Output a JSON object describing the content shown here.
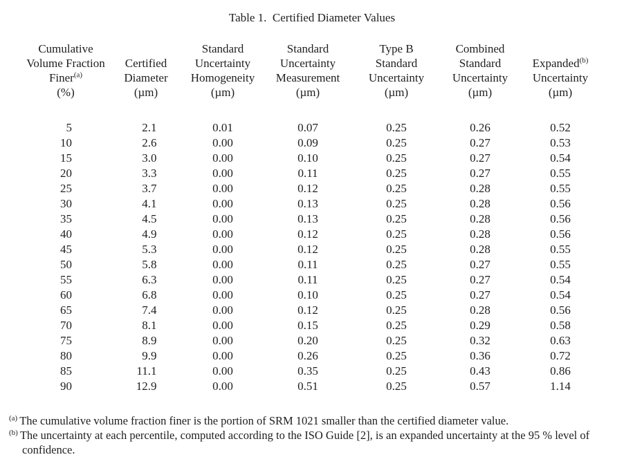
{
  "title": "Table 1.  Certified Diameter Values",
  "table": {
    "header": {
      "col1": {
        "line1": "Cumulative",
        "line2": "Volume Fraction",
        "line3": "Finer",
        "line3_sup": "(a)",
        "line4": "(%)"
      },
      "col2": {
        "line1": "Certified",
        "line2": "Diameter",
        "line3": "(µm)"
      },
      "col3": {
        "line1": "Standard",
        "line2": "Uncertainty",
        "line3": "Homogeneity",
        "line4": "(µm)"
      },
      "col4": {
        "line1": "Standard",
        "line2": "Uncertainty",
        "line3": "Measurement",
        "line4": "(µm)"
      },
      "col5": {
        "line1": "Type B",
        "line2": "Standard",
        "line3": "Uncertainty",
        "line4": "(µm)"
      },
      "col6": {
        "line1": "Combined",
        "line2": "Standard",
        "line3": "Uncertainty",
        "line4": "(µm)"
      },
      "col7": {
        "line1": "Expanded",
        "line1_sup": "(b)",
        "line2": "Uncertainty",
        "line3": "(µm)"
      }
    },
    "column_keys": [
      "volume-fraction-finer",
      "certified-diameter",
      "standard-uncertainty-homogeneity",
      "standard-uncertainty-measurement",
      "type-b-standard-uncertainty",
      "combined-standard-uncertainty",
      "expanded-uncertainty"
    ],
    "rows": [
      [
        "5",
        "2.1",
        "0.01",
        "0.07",
        "0.25",
        "0.26",
        "0.52"
      ],
      [
        "10",
        "2.6",
        "0.00",
        "0.09",
        "0.25",
        "0.27",
        "0.53"
      ],
      [
        "15",
        "3.0",
        "0.00",
        "0.10",
        "0.25",
        "0.27",
        "0.54"
      ],
      [
        "20",
        "3.3",
        "0.00",
        "0.11",
        "0.25",
        "0.27",
        "0.55"
      ],
      [
        "25",
        "3.7",
        "0.00",
        "0.12",
        "0.25",
        "0.28",
        "0.55"
      ],
      [
        "30",
        "4.1",
        "0.00",
        "0.13",
        "0.25",
        "0.28",
        "0.56"
      ],
      [
        "35",
        "4.5",
        "0.00",
        "0.13",
        "0.25",
        "0.28",
        "0.56"
      ],
      [
        "40",
        "4.9",
        "0.00",
        "0.12",
        "0.25",
        "0.28",
        "0.56"
      ],
      [
        "45",
        "5.3",
        "0.00",
        "0.12",
        "0.25",
        "0.28",
        "0.55"
      ],
      [
        "50",
        "5.8",
        "0.00",
        "0.11",
        "0.25",
        "0.27",
        "0.55"
      ],
      [
        "55",
        "6.3",
        "0.00",
        "0.11",
        "0.25",
        "0.27",
        "0.54"
      ],
      [
        "60",
        "6.8",
        "0.00",
        "0.10",
        "0.25",
        "0.27",
        "0.54"
      ],
      [
        "65",
        "7.4",
        "0.00",
        "0.12",
        "0.25",
        "0.28",
        "0.56"
      ],
      [
        "70",
        "8.1",
        "0.00",
        "0.15",
        "0.25",
        "0.29",
        "0.58"
      ],
      [
        "75",
        "8.9",
        "0.00",
        "0.20",
        "0.25",
        "0.32",
        "0.63"
      ],
      [
        "80",
        "9.9",
        "0.00",
        "0.26",
        "0.25",
        "0.36",
        "0.72"
      ],
      [
        "85",
        "11.1",
        "0.00",
        "0.35",
        "0.25",
        "0.43",
        "0.86"
      ],
      [
        "90",
        "12.9",
        "0.00",
        "0.51",
        "0.25",
        "0.57",
        "1.14"
      ]
    ]
  },
  "footnotes": [
    {
      "marker": "(a)",
      "text": "The cumulative volume fraction finer is the portion of SRM 1021 smaller than the certified diameter value."
    },
    {
      "marker": "(b)",
      "text": "The uncertainty at each percentile, computed according to the ISO Guide [2], is an expanded uncertainty at the 95 % level of confidence."
    }
  ],
  "colors": {
    "text": "#1e1e1e",
    "background": "#ffffff"
  }
}
